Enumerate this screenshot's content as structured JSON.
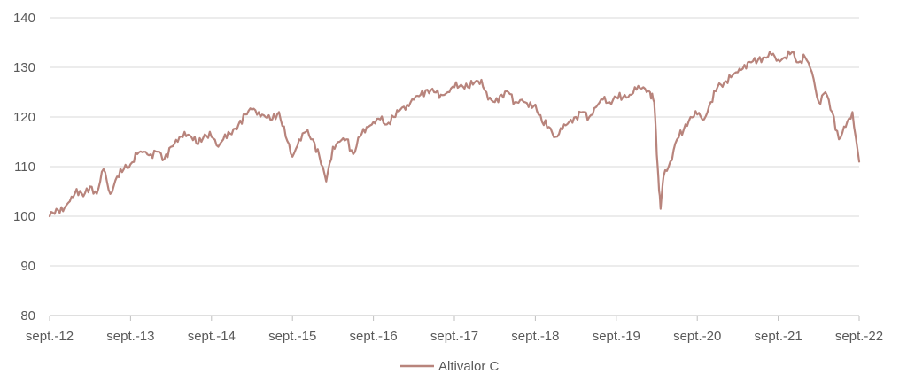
{
  "chart_data": {
    "type": "line",
    "title": "",
    "xlabel": "",
    "ylabel": "",
    "ylim": [
      80,
      140
    ],
    "y_ticks": [
      80,
      90,
      100,
      110,
      120,
      130,
      140
    ],
    "x_tick_labels": [
      "sept.-12",
      "sept.-13",
      "sept.-14",
      "sept.-15",
      "sept.-16",
      "sept.-17",
      "sept.-18",
      "sept.-19",
      "sept.-20",
      "sept.-21",
      "sept.-22"
    ],
    "x_range": [
      "2012-09",
      "2022-09"
    ],
    "grid": "horizontal",
    "legend_position": "bottom-center",
    "series": [
      {
        "name": "Altivalor C",
        "color": "#b8847c",
        "points": [
          [
            "2012-09-01",
            100.0
          ],
          [
            "2012-10-01",
            101.5
          ],
          [
            "2012-11-01",
            101.0
          ],
          [
            "2012-12-01",
            103.0
          ],
          [
            "2013-01-01",
            105.5
          ],
          [
            "2013-02-01",
            104.0
          ],
          [
            "2013-03-01",
            106.0
          ],
          [
            "2013-04-01",
            104.5
          ],
          [
            "2013-05-01",
            109.5
          ],
          [
            "2013-06-01",
            104.5
          ],
          [
            "2013-07-01",
            108.0
          ],
          [
            "2013-08-01",
            109.5
          ],
          [
            "2013-09-01",
            110.5
          ],
          [
            "2013-10-01",
            112.5
          ],
          [
            "2013-11-01",
            113.0
          ],
          [
            "2013-12-01",
            112.5
          ],
          [
            "2014-01-01",
            113.0
          ],
          [
            "2014-02-01",
            111.5
          ],
          [
            "2014-03-01",
            114.0
          ],
          [
            "2014-04-01",
            115.0
          ],
          [
            "2014-05-01",
            117.0
          ],
          [
            "2014-06-01",
            116.0
          ],
          [
            "2014-07-01",
            114.5
          ],
          [
            "2014-08-01",
            116.5
          ],
          [
            "2014-09-01",
            116.0
          ],
          [
            "2014-10-01",
            114.0
          ],
          [
            "2014-11-01",
            116.5
          ],
          [
            "2014-12-01",
            116.5
          ],
          [
            "2015-01-01",
            118.5
          ],
          [
            "2015-02-01",
            120.5
          ],
          [
            "2015-03-01",
            121.5
          ],
          [
            "2015-04-01",
            121.0
          ],
          [
            "2015-05-01",
            120.0
          ],
          [
            "2015-06-01",
            119.5
          ],
          [
            "2015-07-01",
            121.0
          ],
          [
            "2015-08-01",
            116.0
          ],
          [
            "2015-09-01",
            112.0
          ],
          [
            "2015-10-01",
            115.5
          ],
          [
            "2015-11-01",
            117.0
          ],
          [
            "2015-12-01",
            115.5
          ],
          [
            "2016-01-01",
            112.0
          ],
          [
            "2016-02-01",
            107.0
          ],
          [
            "2016-03-01",
            114.0
          ],
          [
            "2016-04-01",
            115.0
          ],
          [
            "2016-05-01",
            115.5
          ],
          [
            "2016-06-01",
            112.5
          ],
          [
            "2016-07-01",
            116.0
          ],
          [
            "2016-08-01",
            118.0
          ],
          [
            "2016-09-01",
            119.0
          ],
          [
            "2016-10-01",
            119.5
          ],
          [
            "2016-11-01",
            118.5
          ],
          [
            "2016-12-01",
            120.0
          ],
          [
            "2017-01-01",
            121.5
          ],
          [
            "2017-02-01",
            122.5
          ],
          [
            "2017-03-01",
            123.5
          ],
          [
            "2017-04-01",
            124.5
          ],
          [
            "2017-05-01",
            125.5
          ],
          [
            "2017-06-01",
            125.0
          ],
          [
            "2017-07-01",
            124.5
          ],
          [
            "2017-08-01",
            125.0
          ],
          [
            "2017-09-01",
            126.0
          ],
          [
            "2017-10-01",
            126.5
          ],
          [
            "2017-11-01",
            126.0
          ],
          [
            "2017-12-01",
            127.0
          ],
          [
            "2018-01-01",
            127.5
          ],
          [
            "2018-02-01",
            123.5
          ],
          [
            "2018-03-01",
            123.0
          ],
          [
            "2018-04-01",
            124.5
          ],
          [
            "2018-05-01",
            125.0
          ],
          [
            "2018-06-01",
            123.0
          ],
          [
            "2018-07-01",
            123.5
          ],
          [
            "2018-08-01",
            122.0
          ],
          [
            "2018-09-01",
            122.5
          ],
          [
            "2018-10-01",
            119.0
          ],
          [
            "2018-11-01",
            118.0
          ],
          [
            "2018-12-01",
            116.0
          ],
          [
            "2019-01-01",
            117.5
          ],
          [
            "2019-02-01",
            119.0
          ],
          [
            "2019-03-01",
            120.0
          ],
          [
            "2019-04-01",
            121.0
          ],
          [
            "2019-05-01",
            120.0
          ],
          [
            "2019-06-01",
            122.0
          ],
          [
            "2019-07-01",
            123.5
          ],
          [
            "2019-08-01",
            123.0
          ],
          [
            "2019-09-01",
            124.0
          ],
          [
            "2019-10-01",
            124.0
          ],
          [
            "2019-11-01",
            124.5
          ],
          [
            "2019-12-01",
            125.5
          ],
          [
            "2020-01-01",
            126.0
          ],
          [
            "2020-02-01",
            125.0
          ],
          [
            "2020-02-20",
            123.0
          ],
          [
            "2020-03-05",
            110.0
          ],
          [
            "2020-03-18",
            101.5
          ],
          [
            "2020-04-01",
            108.0
          ],
          [
            "2020-05-01",
            111.0
          ],
          [
            "2020-06-01",
            115.5
          ],
          [
            "2020-07-01",
            117.5
          ],
          [
            "2020-08-01",
            120.0
          ],
          [
            "2020-09-01",
            120.5
          ],
          [
            "2020-10-01",
            119.5
          ],
          [
            "2020-11-01",
            123.0
          ],
          [
            "2020-12-01",
            126.0
          ],
          [
            "2021-01-01",
            127.0
          ],
          [
            "2021-02-01",
            128.0
          ],
          [
            "2021-03-01",
            129.0
          ],
          [
            "2021-04-01",
            130.5
          ],
          [
            "2021-05-01",
            131.0
          ],
          [
            "2021-06-01",
            131.5
          ],
          [
            "2021-07-01",
            132.0
          ],
          [
            "2021-08-01",
            132.5
          ],
          [
            "2021-09-01",
            131.5
          ],
          [
            "2021-10-01",
            132.0
          ],
          [
            "2021-11-01",
            133.0
          ],
          [
            "2021-12-01",
            131.0
          ],
          [
            "2022-01-01",
            132.0
          ],
          [
            "2022-02-01",
            129.0
          ],
          [
            "2022-03-01",
            123.0
          ],
          [
            "2022-04-01",
            125.0
          ],
          [
            "2022-05-01",
            121.0
          ],
          [
            "2022-06-01",
            115.5
          ],
          [
            "2022-07-01",
            118.0
          ],
          [
            "2022-08-01",
            121.0
          ],
          [
            "2022-09-01",
            111.0
          ]
        ]
      }
    ]
  }
}
